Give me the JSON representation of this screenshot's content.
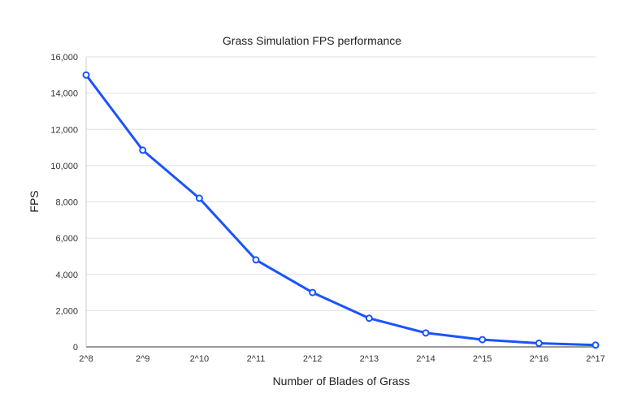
{
  "chart_data": {
    "type": "line",
    "title": "Grass Simulation FPS performance",
    "xlabel": "Number of Blades of Grass",
    "ylabel": "FPS",
    "categories": [
      "2^8",
      "2^9",
      "2^10",
      "2^11",
      "2^12",
      "2^13",
      "2^14",
      "2^15",
      "2^16",
      "2^17"
    ],
    "series": [
      {
        "values": [
          15000,
          10850,
          8200,
          4800,
          3000,
          1580,
          770,
          400,
          200,
          100
        ]
      }
    ],
    "ylim": [
      0,
      16000
    ],
    "yticks": [
      "0",
      "2,000",
      "4,000",
      "6,000",
      "8,000",
      "10,000",
      "12,000",
      "14,000",
      "16,000"
    ],
    "grid": true,
    "line_color": "#1a53ff"
  }
}
